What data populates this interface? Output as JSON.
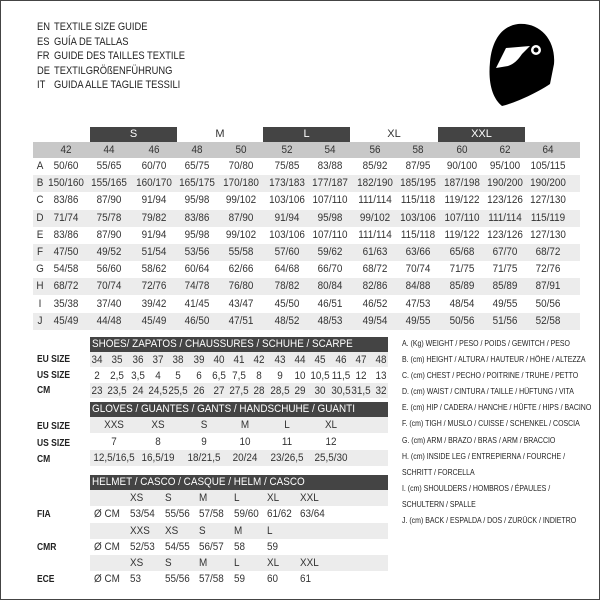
{
  "titles": [
    {
      "code": "EN",
      "text": "TEXTILE SIZE GUIDE"
    },
    {
      "code": "ES",
      "text": "GUÍA DE TALLAS"
    },
    {
      "code": "FR",
      "text": "GUIDE DES TAILLES TEXTILE"
    },
    {
      "code": "DE",
      "text": "TEXTILGRÖßENFÜHRUNG"
    },
    {
      "code": "IT",
      "text": "GUIDA ALLE TAGLIE TESSILI"
    }
  ],
  "icon": "helmet-icon",
  "textile": {
    "bands": [
      {
        "label": "S",
        "dark": true
      },
      {
        "label": "M",
        "dark": false
      },
      {
        "label": "L",
        "dark": true
      },
      {
        "label": "XL",
        "dark": false
      },
      {
        "label": "XXL",
        "dark": true
      }
    ],
    "sizes": [
      "42",
      "44",
      "46",
      "48",
      "50",
      "52",
      "54",
      "56",
      "58",
      "60",
      "62",
      "64"
    ],
    "rows": [
      {
        "label": "A",
        "values": [
          "50/60",
          "55/65",
          "60/70",
          "65/75",
          "70/80",
          "75/85",
          "83/88",
          "85/92",
          "87/95",
          "90/100",
          "95/100",
          "105/115"
        ]
      },
      {
        "label": "B",
        "values": [
          "150/160",
          "155/165",
          "160/170",
          "165/175",
          "170/180",
          "173/183",
          "177/187",
          "182/190",
          "185/195",
          "187/198",
          "190/200",
          "190/200"
        ]
      },
      {
        "label": "C",
        "values": [
          "83/86",
          "87/90",
          "91/94",
          "95/98",
          "99/102",
          "103/106",
          "107/110",
          "111/114",
          "115/118",
          "119/122",
          "123/126",
          "127/130"
        ]
      },
      {
        "label": "D",
        "values": [
          "71/74",
          "75/78",
          "79/82",
          "83/86",
          "87/90",
          "91/94",
          "95/98",
          "99/102",
          "103/106",
          "107/110",
          "111/114",
          "115/119"
        ]
      },
      {
        "label": "E",
        "values": [
          "83/86",
          "87/90",
          "91/94",
          "95/98",
          "99/102",
          "103/106",
          "107/110",
          "111/114",
          "115/118",
          "119/122",
          "123/126",
          "127/130"
        ]
      },
      {
        "label": "F",
        "values": [
          "47/50",
          "49/52",
          "51/54",
          "53/56",
          "55/58",
          "57/60",
          "59/62",
          "61/63",
          "63/66",
          "65/68",
          "67/70",
          "68/72"
        ]
      },
      {
        "label": "G",
        "values": [
          "54/58",
          "56/60",
          "58/62",
          "60/64",
          "62/66",
          "64/68",
          "66/70",
          "68/72",
          "70/74",
          "71/75",
          "71/75",
          "72/76"
        ]
      },
      {
        "label": "H",
        "values": [
          "68/72",
          "70/74",
          "72/76",
          "74/78",
          "76/80",
          "78/82",
          "80/84",
          "82/86",
          "84/88",
          "85/89",
          "85/89",
          "87/91"
        ]
      },
      {
        "label": "I",
        "values": [
          "35/38",
          "37/40",
          "39/42",
          "41/45",
          "43/47",
          "45/50",
          "46/51",
          "46/52",
          "47/53",
          "48/54",
          "49/55",
          "50/56"
        ]
      },
      {
        "label": "J",
        "values": [
          "45/49",
          "44/48",
          "45/49",
          "46/50",
          "47/51",
          "48/52",
          "48/53",
          "49/54",
          "49/55",
          "50/56",
          "51/56",
          "52/58"
        ]
      }
    ]
  },
  "shoes": {
    "title": "SHOES/ ZAPATOS / CHAUSSURES / SCHUHE / SCARPE",
    "rows": [
      {
        "label": "EU SIZE",
        "values": [
          "34",
          "35",
          "36",
          "37",
          "38",
          "39",
          "40",
          "41",
          "42",
          "43",
          "44",
          "45",
          "46",
          "47",
          "48"
        ]
      },
      {
        "label": "US SIZE",
        "values": [
          "2",
          "2,5",
          "3,5",
          "4",
          "5",
          "6",
          "6,5",
          "7,5",
          "8",
          "9",
          "10",
          "10,5",
          "11,5",
          "12",
          "13"
        ]
      },
      {
        "label": "CM",
        "values": [
          "23",
          "23,5",
          "24",
          "24,5",
          "25,5",
          "26",
          "27",
          "27,5",
          "28",
          "28,5",
          "29",
          "30",
          "30,5",
          "31,5",
          "32"
        ]
      }
    ]
  },
  "gloves": {
    "title": "GLOVES / GUANTES / GANTS / HANDSCHUHE / GUANTI",
    "rows": [
      {
        "label": "EU SIZE",
        "values": [
          "XXS",
          "XS",
          "S",
          "M",
          "L",
          "XL"
        ]
      },
      {
        "label": "US SIZE",
        "values": [
          "7",
          "8",
          "9",
          "10",
          "11",
          "12"
        ]
      },
      {
        "label": "CM",
        "values": [
          "12,5/16,5",
          "16,5/19",
          "18/21,5",
          "20/24",
          "23/26,5",
          "25,5/30"
        ]
      }
    ]
  },
  "helmet": {
    "title": "HELMET / CASCO / CASQUE / HELM / CASCO",
    "groups": [
      {
        "label": "FIA",
        "unit": "Ø CM",
        "sizes": [
          "XS",
          "S",
          "M",
          "L",
          "XL",
          "XXL"
        ],
        "values": [
          "53/54",
          "55/56",
          "57/58",
          "59/60",
          "61/62",
          "63/64"
        ]
      },
      {
        "label": "CMR",
        "unit": "Ø CM",
        "sizes": [
          "XXS",
          "XS",
          "S",
          "M",
          "L"
        ],
        "values": [
          "52/53",
          "54/55",
          "56/57",
          "58",
          "59"
        ]
      },
      {
        "label": "ECE",
        "unit": "Ø CM",
        "sizes": [
          "XS",
          "S",
          "M",
          "L",
          "XL",
          "XXL"
        ],
        "values": [
          "53",
          "55/56",
          "57/58",
          "59",
          "60",
          "61"
        ]
      }
    ]
  },
  "legend": [
    "A. (Kg) WEIGHT / PESO / POIDS / GEWITCH / PESO",
    "B. (cm) HEIGHT / ALTURA / HAUTEUR / HÖHE / ALTEZZA",
    "C. (cm) CHEST / PECHO / POITRINE / TRUHE / PETTO",
    "D. (cm) WAIST / CINTURA / TAILLE / HÜFTUNG / VITA",
    "E. (cm) HIP / CADERA / HANCHE / HÜFTE / HIPS /  BACINO",
    "F.  (cm) TIGH / MUSLO / CUISSE / SCHENKEL / COSCIA",
    "G. (cm) ARM  / BRAZO / BRAS / ARM / BRACCIO",
    "H. (cm) INSIDE LEG / ENTREPIERNA / FOURCHE /",
    "SCHRITT / FORCELLA",
    "I.  (cm) SHOULDERS / HOMBROS / ÉPAULES /",
    "SCHULTERN / SPALLE",
    "J. (cm) BACK / ESPALDA / DOS / ZURÜCK / INDIETRO"
  ]
}
